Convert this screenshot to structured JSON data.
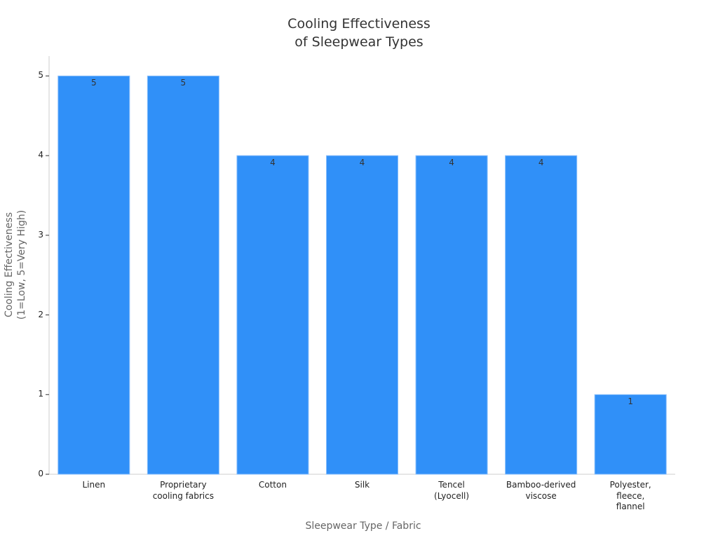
{
  "chart_data": {
    "type": "bar",
    "title": "Cooling Effectiveness\nof Sleepwear Types",
    "x_label": "Sleepwear Type / Fabric",
    "y_label": "Cooling Effectiveness\n(1=Low, 5=Very High)",
    "categories": [
      "Linen",
      "Proprietary\ncooling fabrics",
      "Cotton",
      "Silk",
      "Tencel\n(Lyocell)",
      "Bamboo-derived\nviscose",
      "Polyester,\nfleece,\nflannel"
    ],
    "values": [
      5,
      5,
      4,
      4,
      4,
      4,
      1
    ],
    "color": "#3090f8",
    "ylim": [
      0,
      5.25
    ],
    "yticks": [
      0,
      1,
      2,
      3,
      4,
      5
    ],
    "grid": false
  }
}
